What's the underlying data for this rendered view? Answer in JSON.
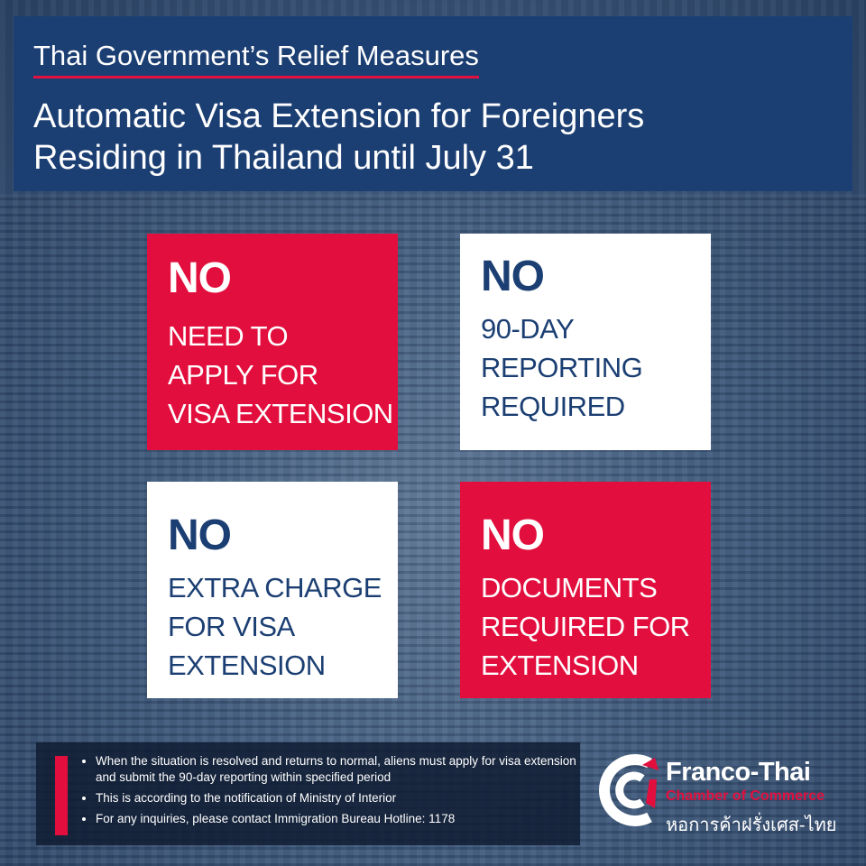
{
  "header": {
    "subtitle": "Thai Government’s Relief Measures",
    "title_line1": "Automatic Visa Extension for Foreigners",
    "title_line2": "Residing in Thailand until July 31"
  },
  "cards": [
    {
      "heading": "NO",
      "lines": [
        "NEED TO",
        "APPLY FOR",
        "VISA EXTENSION"
      ],
      "style": "red"
    },
    {
      "heading": "NO",
      "lines": [
        "90-DAY",
        "REPORTING",
        "REQUIRED"
      ],
      "style": "white"
    },
    {
      "heading": "NO",
      "lines": [
        "EXTRA CHARGE",
        "FOR VISA",
        "EXTENSION"
      ],
      "style": "white"
    },
    {
      "heading": "NO",
      "lines": [
        "DOCUMENTS",
        "REQUIRED FOR",
        "EXTENSION"
      ],
      "style": "red"
    }
  ],
  "notes": [
    "When the situation is resolved and returns to normal, aliens must apply for visa extension and submit the 90-day reporting within specified period",
    "This is according to the notification of Ministry of Interior",
    "For any inquiries, please contact Immigration Bureau Hotline:  1178"
  ],
  "logo": {
    "name": "Franco-Thai",
    "tagline": "Chamber of Commerce",
    "thai_name": "หอการค้าฝรั่งเศส-ไทย",
    "icon": "cci-logo-icon"
  },
  "colors": {
    "navy": "#1c3f73",
    "red": "#e20f3e",
    "white": "#ffffff"
  }
}
